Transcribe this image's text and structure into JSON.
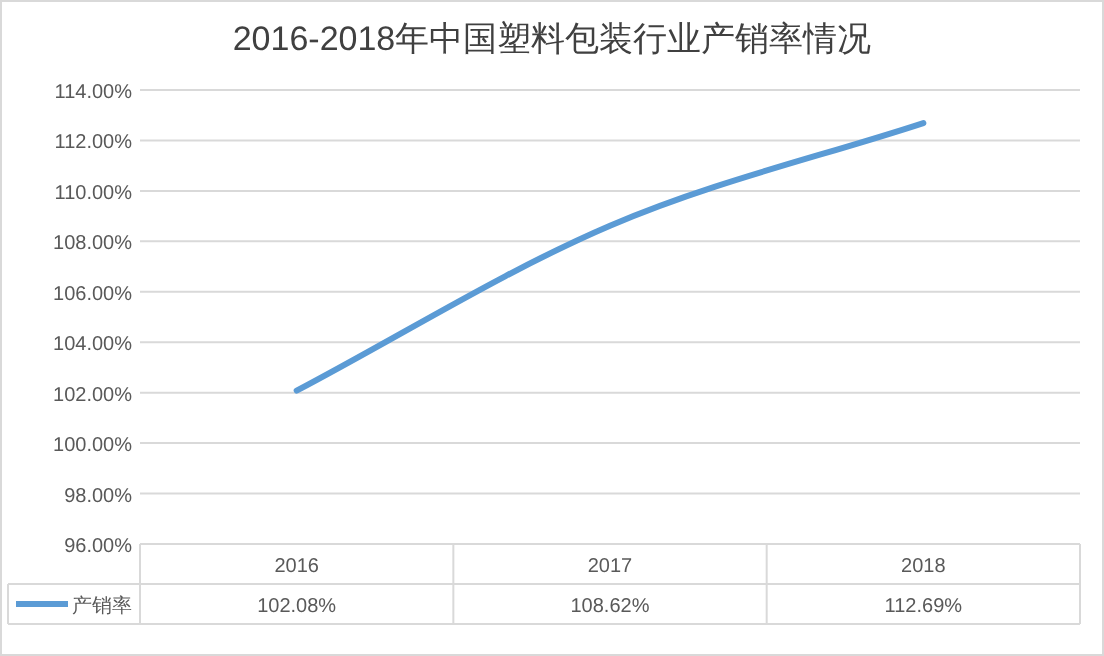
{
  "chart_data": {
    "type": "line",
    "title": "2016-2018年中国塑料包装行业产销率情况",
    "categories": [
      "2016",
      "2017",
      "2018"
    ],
    "series": [
      {
        "name": "产销率",
        "color": "#5b9bd5",
        "values": [
          102.08,
          108.62,
          112.69
        ],
        "value_labels": [
          "102.08%",
          "108.62%",
          "112.69%"
        ]
      }
    ],
    "ylim": [
      96,
      114
    ],
    "yticks": [
      {
        "value": 96,
        "label": "96.00%"
      },
      {
        "value": 98,
        "label": "98.00%"
      },
      {
        "value": 100,
        "label": "100.00%"
      },
      {
        "value": 102,
        "label": "102.00%"
      },
      {
        "value": 104,
        "label": "104.00%"
      },
      {
        "value": 106,
        "label": "106.00%"
      },
      {
        "value": 108,
        "label": "108.00%"
      },
      {
        "value": 110,
        "label": "110.00%"
      },
      {
        "value": 112,
        "label": "112.00%"
      },
      {
        "value": 114,
        "label": "114.00%"
      }
    ],
    "grid": "y",
    "legend": "bottom",
    "marker": "none",
    "line_style": "solid"
  }
}
